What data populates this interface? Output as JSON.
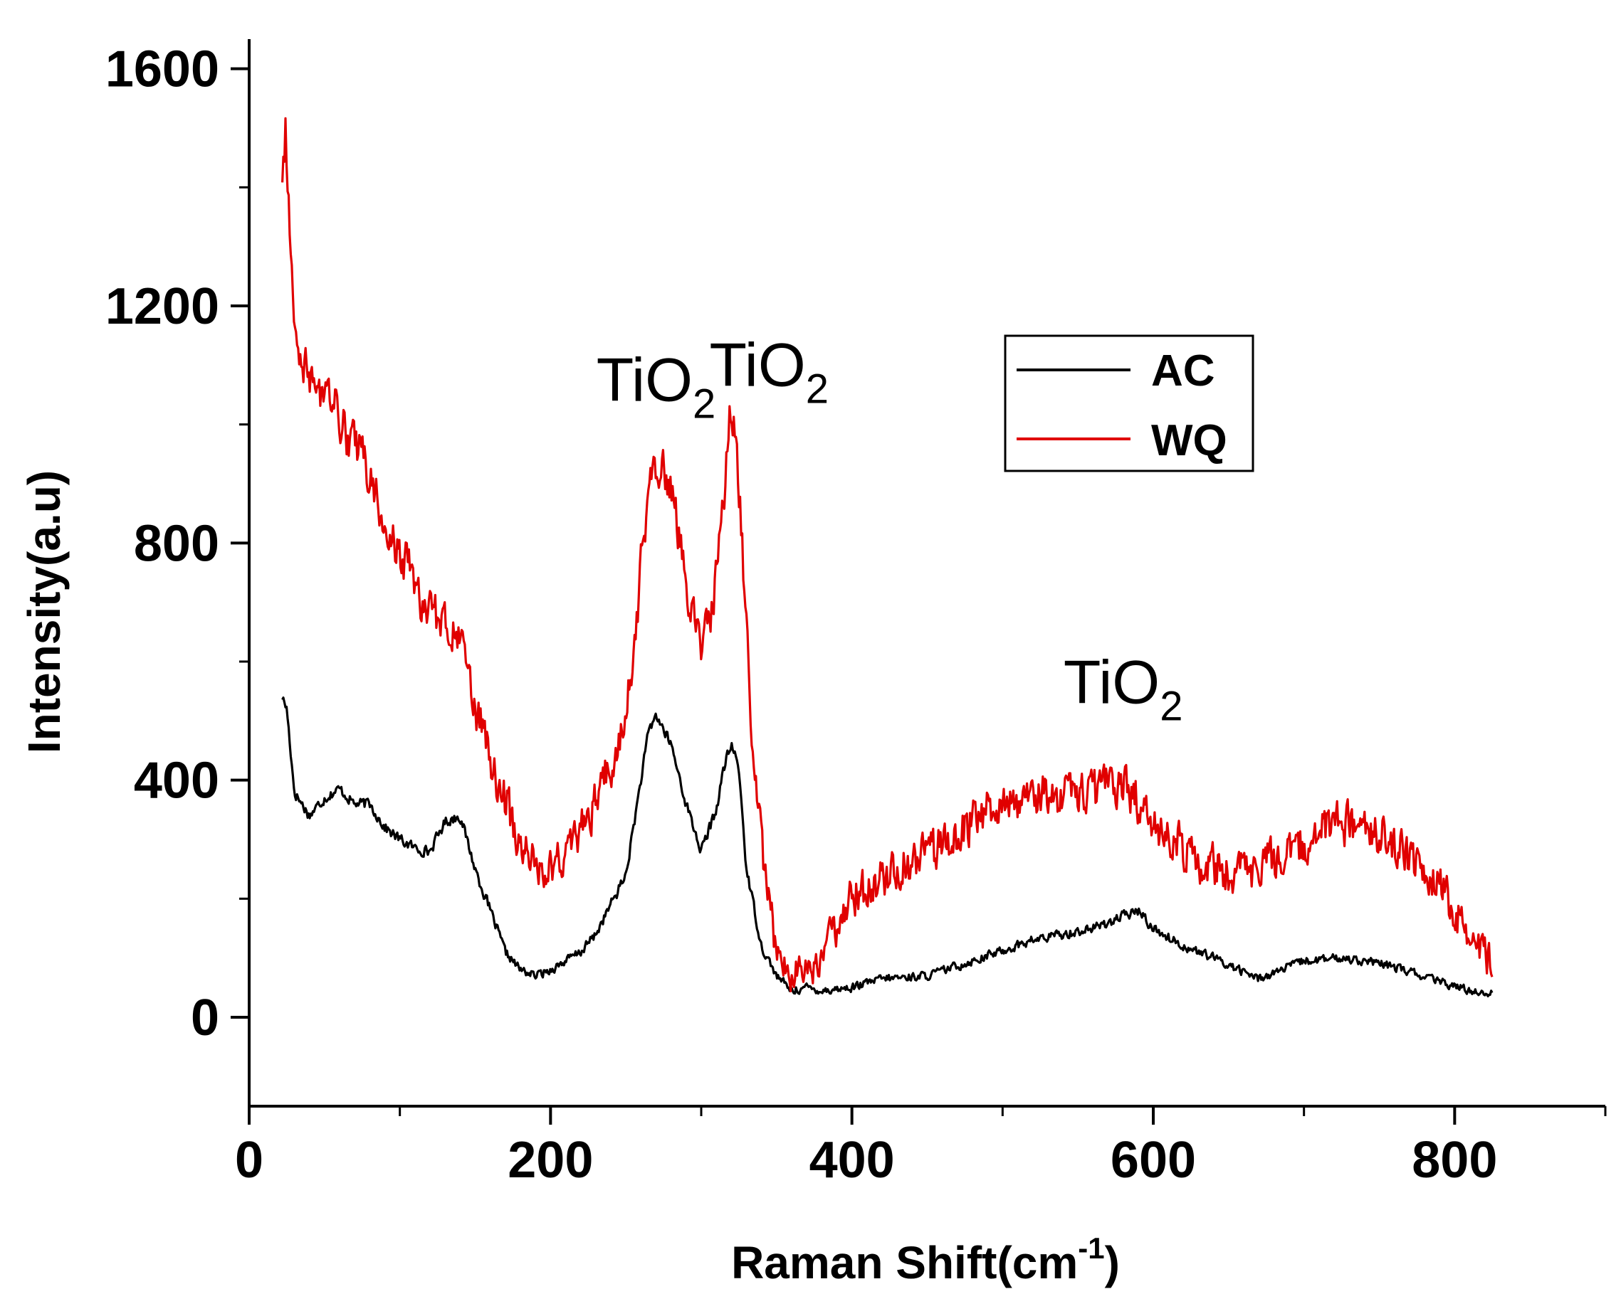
{
  "chart_data": {
    "type": "line",
    "title": "",
    "xlabel": "Raman Shift(cm",
    "xlabel_sup": "-1",
    "xlabel_suffix": ")",
    "ylabel": "Intensity(a.u)",
    "xlim": [
      0,
      900
    ],
    "ylim": [
      -150,
      1650
    ],
    "x_ticks": [
      0,
      200,
      400,
      600,
      800
    ],
    "x_tick_labels": [
      "0",
      "200",
      "400",
      "600",
      "800"
    ],
    "x_minor_ticks": [
      100,
      300,
      500,
      700,
      900
    ],
    "y_ticks": [
      0,
      400,
      800,
      1200,
      1600
    ],
    "y_tick_labels": [
      "0",
      "400",
      "800",
      "1200",
      "1600"
    ],
    "y_minor_ticks": [
      -200,
      200,
      600,
      1000,
      1400
    ],
    "legend": {
      "placement": "top-right",
      "entries": [
        {
          "name": "AC",
          "color": "#000000"
        },
        {
          "name": "WQ",
          "color": "#e00000"
        }
      ]
    },
    "annotations": [
      {
        "main": "TiO",
        "sub": "2",
        "x": 270,
        "y": 1040
      },
      {
        "main": "TiO",
        "sub": "2",
        "x": 345,
        "y": 1065
      },
      {
        "main": "TiO",
        "sub": "2",
        "x": 580,
        "y": 530
      }
    ],
    "series": [
      {
        "name": "AC",
        "color": "#000000",
        "noise": 14,
        "points": [
          [
            22,
            540
          ],
          [
            25,
            520
          ],
          [
            30,
            380
          ],
          [
            40,
            340
          ],
          [
            50,
            370
          ],
          [
            60,
            385
          ],
          [
            70,
            360
          ],
          [
            80,
            360
          ],
          [
            90,
            320
          ],
          [
            100,
            300
          ],
          [
            110,
            285
          ],
          [
            120,
            280
          ],
          [
            130,
            330
          ],
          [
            140,
            340
          ],
          [
            150,
            250
          ],
          [
            160,
            180
          ],
          [
            170,
            110
          ],
          [
            180,
            80
          ],
          [
            190,
            70
          ],
          [
            200,
            80
          ],
          [
            210,
            95
          ],
          [
            220,
            110
          ],
          [
            230,
            140
          ],
          [
            240,
            190
          ],
          [
            250,
            240
          ],
          [
            260,
            400
          ],
          [
            265,
            480
          ],
          [
            270,
            510
          ],
          [
            280,
            460
          ],
          [
            290,
            360
          ],
          [
            300,
            280
          ],
          [
            310,
            350
          ],
          [
            315,
            420
          ],
          [
            320,
            460
          ],
          [
            325,
            420
          ],
          [
            330,
            250
          ],
          [
            340,
            120
          ],
          [
            350,
            70
          ],
          [
            360,
            45
          ],
          [
            370,
            50
          ],
          [
            380,
            45
          ],
          [
            400,
            50
          ],
          [
            420,
            65
          ],
          [
            450,
            70
          ],
          [
            480,
            95
          ],
          [
            520,
            130
          ],
          [
            560,
            150
          ],
          [
            590,
            180
          ],
          [
            600,
            150
          ],
          [
            620,
            120
          ],
          [
            640,
            100
          ],
          [
            670,
            65
          ],
          [
            700,
            95
          ],
          [
            730,
            100
          ],
          [
            760,
            85
          ],
          [
            790,
            60
          ],
          [
            810,
            45
          ],
          [
            825,
            40
          ]
        ]
      },
      {
        "name": "WQ",
        "color": "#e00000",
        "noise": 55,
        "points": [
          [
            22,
            1400
          ],
          [
            24,
            1500
          ],
          [
            26,
            1380
          ],
          [
            30,
            1200
          ],
          [
            35,
            1100
          ],
          [
            45,
            1060
          ],
          [
            55,
            1040
          ],
          [
            65,
            980
          ],
          [
            75,
            950
          ],
          [
            85,
            870
          ],
          [
            95,
            810
          ],
          [
            105,
            760
          ],
          [
            115,
            700
          ],
          [
            125,
            670
          ],
          [
            135,
            660
          ],
          [
            140,
            640
          ],
          [
            145,
            560
          ],
          [
            155,
            480
          ],
          [
            165,
            400
          ],
          [
            175,
            330
          ],
          [
            185,
            270
          ],
          [
            195,
            250
          ],
          [
            205,
            260
          ],
          [
            215,
            290
          ],
          [
            230,
            360
          ],
          [
            245,
            460
          ],
          [
            255,
            600
          ],
          [
            262,
            820
          ],
          [
            268,
            930
          ],
          [
            275,
            940
          ],
          [
            283,
            850
          ],
          [
            293,
            700
          ],
          [
            300,
            620
          ],
          [
            307,
            690
          ],
          [
            315,
            880
          ],
          [
            320,
            1040
          ],
          [
            325,
            900
          ],
          [
            333,
            500
          ],
          [
            343,
            220
          ],
          [
            350,
            110
          ],
          [
            360,
            70
          ],
          [
            375,
            80
          ],
          [
            400,
            200
          ],
          [
            430,
            250
          ],
          [
            460,
            290
          ],
          [
            490,
            350
          ],
          [
            520,
            370
          ],
          [
            560,
            380
          ],
          [
            580,
            400
          ],
          [
            600,
            330
          ],
          [
            630,
            260
          ],
          [
            660,
            240
          ],
          [
            690,
            280
          ],
          [
            720,
            330
          ],
          [
            750,
            310
          ],
          [
            780,
            250
          ],
          [
            800,
            180
          ],
          [
            815,
            120
          ],
          [
            825,
            90
          ]
        ]
      }
    ]
  }
}
